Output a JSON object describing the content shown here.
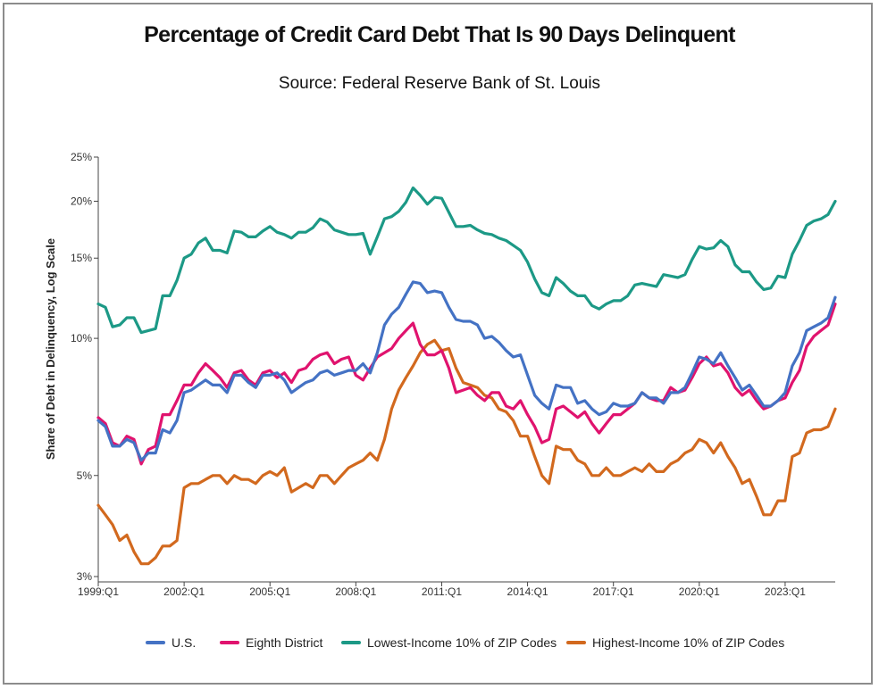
{
  "chart_data": {
    "type": "line",
    "title": "Percentage of Credit Card Debt That Is 90 Days Delinquent",
    "subtitle": "Source: Federal Reserve Bank of St. Louis",
    "ylabel": "Share of Debt in Delinquency, Log Scale",
    "xlabel": "",
    "y_scale": "log",
    "ylim": [
      3,
      25
    ],
    "y_ticks": [
      3,
      5,
      10,
      15,
      20,
      25
    ],
    "y_tick_labels": [
      "3%",
      "5%",
      "10%",
      "15%",
      "20%",
      "25%"
    ],
    "x_tick_labels": [
      "1999:Q1",
      "2002:Q1",
      "2005:Q1",
      "2008:Q1",
      "2011:Q1",
      "2014:Q1",
      "2017:Q1",
      "2020:Q1",
      "2023:Q1"
    ],
    "x_start": "1999:Q1",
    "x_end": "2024:Q4",
    "grid": false,
    "legend_position": "bottom",
    "series": [
      {
        "name": "U.S.",
        "color": "#4472c4",
        "values": [
          6.6,
          6.4,
          5.8,
          5.8,
          6.0,
          5.9,
          5.4,
          5.6,
          5.6,
          6.3,
          6.2,
          6.6,
          7.6,
          7.7,
          7.9,
          8.1,
          7.9,
          7.9,
          7.6,
          8.3,
          8.3,
          8.0,
          7.8,
          8.3,
          8.3,
          8.4,
          8.1,
          7.6,
          7.8,
          8.0,
          8.1,
          8.4,
          8.5,
          8.3,
          8.4,
          8.5,
          8.5,
          8.8,
          8.4,
          9.3,
          10.7,
          11.3,
          11.7,
          12.5,
          13.3,
          13.2,
          12.6,
          12.7,
          12.6,
          11.7,
          11.0,
          10.9,
          10.9,
          10.7,
          10.0,
          10.1,
          9.8,
          9.4,
          9.1,
          9.2,
          8.3,
          7.5,
          7.2,
          7.0,
          7.9,
          7.8,
          7.8,
          7.2,
          7.3,
          7.0,
          6.8,
          6.9,
          7.2,
          7.1,
          7.1,
          7.2,
          7.6,
          7.4,
          7.4,
          7.2,
          7.6,
          7.6,
          7.8,
          8.4,
          9.1,
          9.0,
          8.8,
          9.3,
          8.7,
          8.2,
          7.7,
          7.9,
          7.5,
          7.1,
          7.1,
          7.3,
          7.6,
          8.7,
          9.3,
          10.4,
          10.6,
          10.8,
          11.1,
          12.3
        ]
      },
      {
        "name": "Eighth District",
        "color": "#e0136e",
        "values": [
          6.7,
          6.5,
          5.9,
          5.8,
          6.1,
          6.0,
          5.3,
          5.7,
          5.8,
          6.8,
          6.8,
          7.3,
          7.9,
          7.9,
          8.4,
          8.8,
          8.5,
          8.2,
          7.8,
          8.4,
          8.5,
          8.1,
          7.9,
          8.4,
          8.5,
          8.2,
          8.4,
          8.0,
          8.5,
          8.6,
          9.0,
          9.2,
          9.3,
          8.8,
          9.0,
          9.1,
          8.3,
          8.1,
          8.6,
          9.1,
          9.3,
          9.5,
          10.0,
          10.4,
          10.8,
          9.7,
          9.2,
          9.2,
          9.4,
          8.6,
          7.6,
          7.7,
          7.8,
          7.5,
          7.3,
          7.6,
          7.6,
          7.1,
          7.0,
          7.3,
          6.8,
          6.4,
          5.9,
          6.0,
          7.0,
          7.1,
          6.9,
          6.7,
          6.9,
          6.5,
          6.2,
          6.5,
          6.8,
          6.8,
          7.0,
          7.2,
          7.6,
          7.4,
          7.3,
          7.3,
          7.8,
          7.6,
          7.7,
          8.2,
          8.8,
          9.1,
          8.7,
          8.8,
          8.4,
          7.8,
          7.5,
          7.7,
          7.3,
          7.0,
          7.1,
          7.3,
          7.4,
          8.0,
          8.5,
          9.6,
          10.1,
          10.4,
          10.7,
          11.9
        ]
      },
      {
        "name": "Lowest-Income 10% of ZIP Codes",
        "color": "#1c9986",
        "values": [
          11.9,
          11.7,
          10.6,
          10.7,
          11.1,
          11.1,
          10.3,
          10.4,
          10.5,
          12.4,
          12.4,
          13.4,
          15.0,
          15.3,
          16.2,
          16.6,
          15.6,
          15.6,
          15.4,
          17.2,
          17.1,
          16.7,
          16.7,
          17.2,
          17.6,
          17.1,
          16.9,
          16.6,
          17.1,
          17.1,
          17.5,
          18.3,
          18.0,
          17.3,
          17.1,
          16.9,
          16.9,
          17.0,
          15.3,
          16.7,
          18.3,
          18.5,
          19.0,
          19.9,
          21.4,
          20.6,
          19.7,
          20.4,
          20.3,
          18.9,
          17.6,
          17.6,
          17.7,
          17.3,
          17.0,
          16.9,
          16.6,
          16.4,
          16.0,
          15.6,
          14.7,
          13.5,
          12.6,
          12.4,
          13.6,
          13.2,
          12.7,
          12.4,
          12.4,
          11.8,
          11.6,
          11.9,
          12.1,
          12.1,
          12.4,
          13.1,
          13.2,
          13.1,
          13.0,
          13.8,
          13.7,
          13.6,
          13.8,
          14.9,
          15.9,
          15.7,
          15.8,
          16.4,
          15.9,
          14.5,
          14.0,
          14.0,
          13.3,
          12.8,
          12.9,
          13.7,
          13.6,
          15.3,
          16.4,
          17.7,
          18.1,
          18.3,
          18.7,
          20.0
        ]
      },
      {
        "name": "Highest-Income 10% of ZIP Codes",
        "color": "#d2691e",
        "values": [
          4.3,
          4.1,
          3.9,
          3.6,
          3.7,
          3.4,
          3.2,
          3.2,
          3.3,
          3.5,
          3.5,
          3.6,
          4.7,
          4.8,
          4.8,
          4.9,
          5.0,
          5.0,
          4.8,
          5.0,
          4.9,
          4.9,
          4.8,
          5.0,
          5.1,
          5.0,
          5.2,
          4.6,
          4.7,
          4.8,
          4.7,
          5.0,
          5.0,
          4.8,
          5.0,
          5.2,
          5.3,
          5.4,
          5.6,
          5.4,
          6.0,
          7.0,
          7.7,
          8.2,
          8.7,
          9.3,
          9.7,
          9.9,
          9.4,
          9.5,
          8.6,
          8.0,
          7.9,
          7.8,
          7.5,
          7.4,
          7.0,
          6.9,
          6.6,
          6.1,
          6.1,
          5.5,
          5.0,
          4.8,
          5.8,
          5.7,
          5.7,
          5.4,
          5.3,
          5.0,
          5.0,
          5.2,
          5.0,
          5.0,
          5.1,
          5.2,
          5.1,
          5.3,
          5.1,
          5.1,
          5.3,
          5.4,
          5.6,
          5.7,
          6.0,
          5.9,
          5.6,
          5.9,
          5.5,
          5.2,
          4.8,
          4.9,
          4.5,
          4.1,
          4.1,
          4.4,
          4.4,
          5.5,
          5.6,
          6.2,
          6.3,
          6.3,
          6.4,
          7.0
        ]
      }
    ]
  }
}
